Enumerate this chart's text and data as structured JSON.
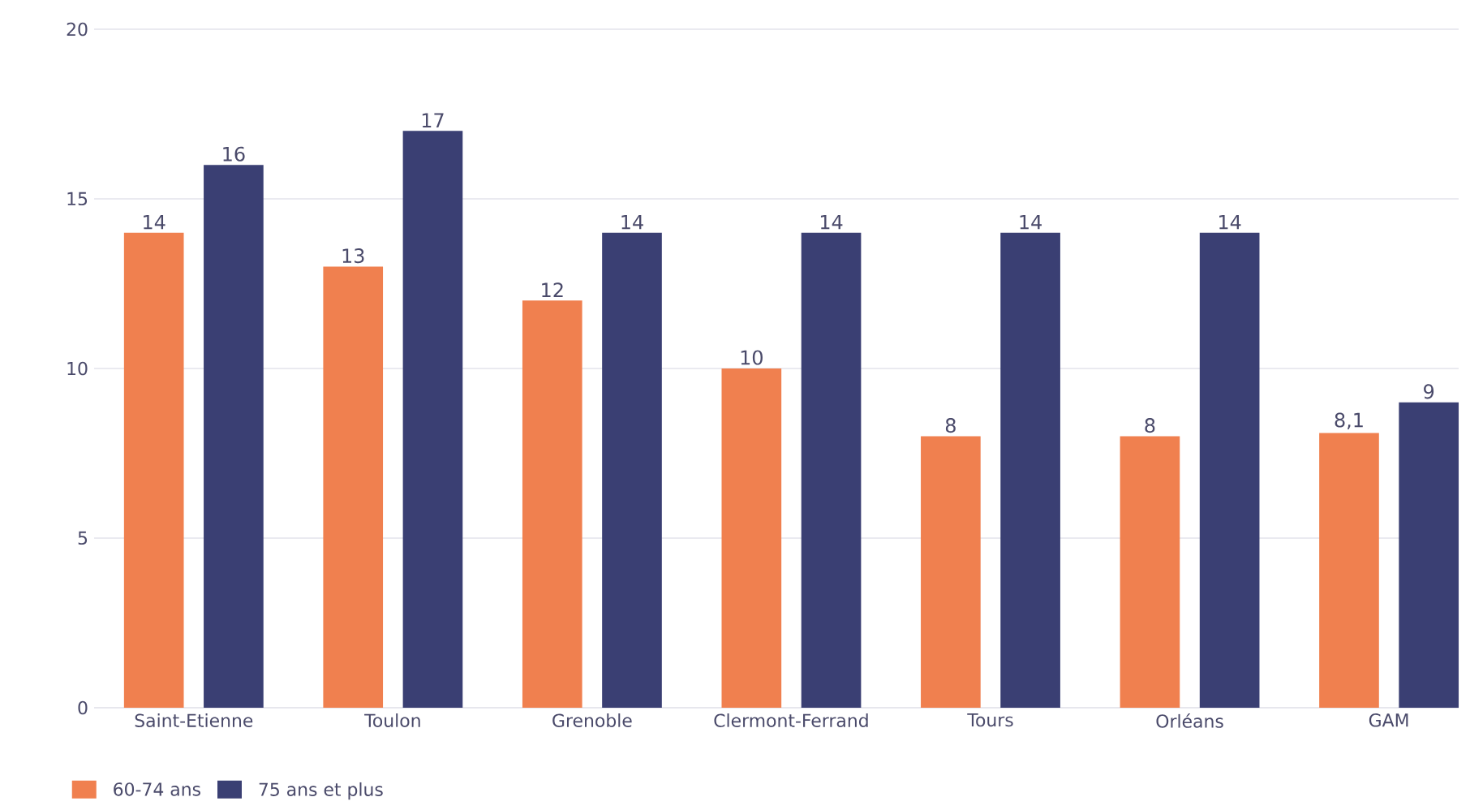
{
  "chart_data": {
    "type": "bar",
    "categories": [
      "Saint-Etienne",
      "Toulon",
      "Grenoble",
      "Clermont-Ferrand",
      "Tours",
      "Orléans",
      "GAM"
    ],
    "series": [
      {
        "name": "60-74 ans",
        "color": "#f0804f",
        "values": [
          14,
          13,
          12,
          10,
          8,
          8,
          8.1
        ],
        "value_labels": [
          "14",
          "13",
          "12",
          "10",
          "8",
          "8",
          "8,1"
        ]
      },
      {
        "name": "75 ans et plus",
        "color": "#3a3f73",
        "values": [
          16,
          17,
          14,
          14,
          14,
          14,
          9
        ],
        "value_labels": [
          "16",
          "17",
          "14",
          "14",
          "14",
          "14",
          "9"
        ]
      }
    ],
    "ylim": [
      0,
      20
    ],
    "yticks": [
      0,
      5,
      10,
      15,
      20
    ],
    "grid": "y",
    "legend": "bottom left"
  }
}
